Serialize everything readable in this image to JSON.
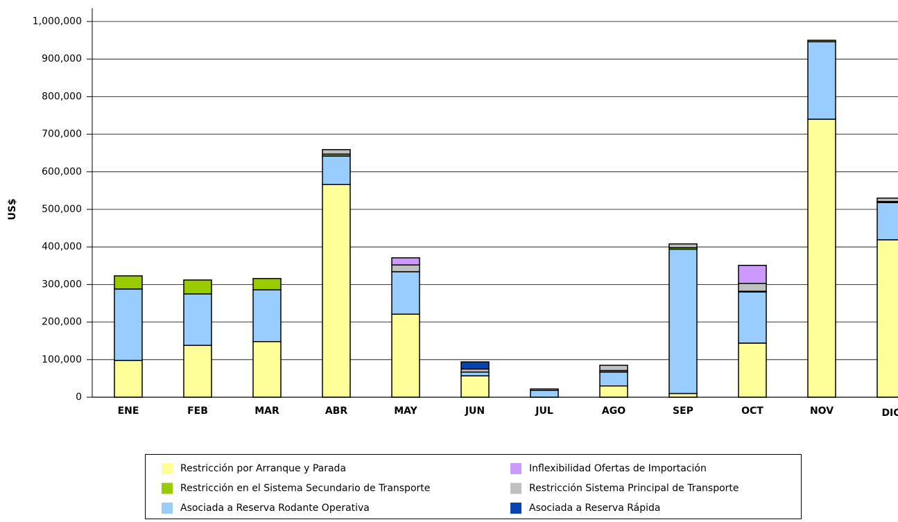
{
  "chart_data": {
    "type": "stacked_bar",
    "y_label": "US$",
    "categories": [
      "ENE",
      "FEB",
      "MAR",
      "ABR",
      "MAY",
      "JUN",
      "JUL",
      "AGO",
      "SEP",
      "OCT",
      "NOV",
      "DIC"
    ],
    "series": [
      {
        "name": "Restricción por Arranque y Parada",
        "color": "#ffff99",
        "values": [
          98000,
          138000,
          148000,
          566000,
          221000,
          57000,
          0,
          30000,
          10000,
          144000,
          740000,
          419000
        ]
      },
      {
        "name": "Asociada a Reserva Rodante Operativa",
        "color": "#99ccff",
        "values": [
          190000,
          137000,
          138000,
          76000,
          113000,
          10000,
          18000,
          37000,
          384000,
          136000,
          206000,
          99000
        ]
      },
      {
        "name": "Restricción en el Sistema Secundario de Transporte",
        "color": "#99cc00",
        "values": [
          35000,
          37000,
          30000,
          5000,
          0,
          0,
          0,
          4000,
          4000,
          2000,
          4000,
          3000
        ]
      },
      {
        "name": "Restricción Sistema Principal de Transporte",
        "color": "#c0c0c0",
        "values": [
          0,
          0,
          0,
          12000,
          18000,
          8000,
          4000,
          14000,
          10000,
          21000,
          0,
          9000
        ]
      },
      {
        "name": "Inflexibilidad Ofertas de Importación",
        "color": "#cc99ff",
        "values": [
          0,
          0,
          0,
          0,
          19000,
          0,
          0,
          0,
          0,
          48000,
          0,
          0
        ]
      },
      {
        "name": "Asociada a Reserva Rápida",
        "color": "#0645ad",
        "values": [
          0,
          0,
          0,
          0,
          0,
          19000,
          0,
          0,
          0,
          0,
          0,
          0
        ]
      }
    ],
    "ylim": [
      0,
      1000000
    ],
    "yticks": [
      0,
      {
        "value": 100000,
        "label": "100,000"
      },
      {
        "value": 200000,
        "label": "200,000"
      },
      {
        "value": 300000,
        "label": "300,000"
      },
      {
        "value": 400000,
        "label": "400,000"
      },
      {
        "value": 500000,
        "label": "500,000"
      },
      {
        "value": 600000,
        "label": "600,000"
      },
      {
        "value": 700000,
        "label": "700,000"
      },
      {
        "value": 800000,
        "label": "800,000"
      },
      {
        "value": 900000,
        "label": "900,000"
      },
      {
        "value": 1000000,
        "label": "1,000,000"
      }
    ],
    "grid": true
  }
}
